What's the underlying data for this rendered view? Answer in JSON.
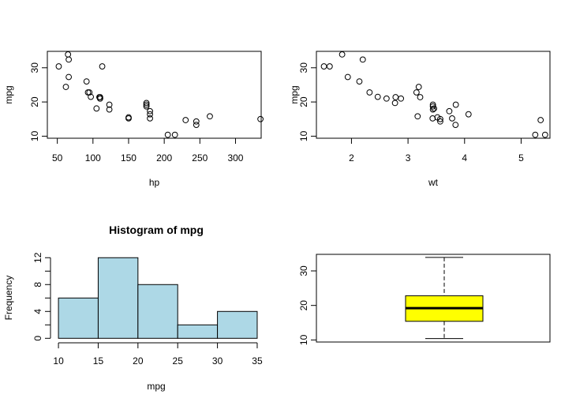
{
  "chart_data": [
    {
      "type": "scatter",
      "xlabel": "hp",
      "ylabel": "mpg",
      "xlim": [
        36,
        336
      ],
      "ylim": [
        9.4,
        34.8
      ],
      "xticks": [
        50,
        100,
        150,
        200,
        250,
        300
      ],
      "yticks": [
        10,
        20,
        30
      ],
      "points": [
        [
          110,
          21.0
        ],
        [
          110,
          21.0
        ],
        [
          93,
          22.8
        ],
        [
          110,
          21.4
        ],
        [
          175,
          18.7
        ],
        [
          105,
          18.1
        ],
        [
          245,
          14.3
        ],
        [
          62,
          24.4
        ],
        [
          95,
          22.8
        ],
        [
          123,
          19.2
        ],
        [
          123,
          17.8
        ],
        [
          180,
          16.4
        ],
        [
          180,
          17.3
        ],
        [
          180,
          15.2
        ],
        [
          205,
          10.4
        ],
        [
          215,
          10.4
        ],
        [
          230,
          14.7
        ],
        [
          66,
          32.4
        ],
        [
          52,
          30.4
        ],
        [
          65,
          33.9
        ],
        [
          97,
          21.5
        ],
        [
          150,
          15.5
        ],
        [
          150,
          15.2
        ],
        [
          245,
          13.3
        ],
        [
          175,
          19.2
        ],
        [
          66,
          27.3
        ],
        [
          91,
          26.0
        ],
        [
          113,
          30.4
        ],
        [
          264,
          15.8
        ],
        [
          175,
          19.7
        ],
        [
          335,
          15.0
        ],
        [
          109,
          21.4
        ]
      ]
    },
    {
      "type": "scatter",
      "xlabel": "wt",
      "ylabel": "mpg",
      "xlim": [
        1.38,
        5.51
      ],
      "ylim": [
        9.4,
        34.8
      ],
      "xticks": [
        2,
        3,
        4,
        5
      ],
      "yticks": [
        10,
        20,
        30
      ],
      "points": [
        [
          2.62,
          21.0
        ],
        [
          2.875,
          21.0
        ],
        [
          2.32,
          22.8
        ],
        [
          3.215,
          21.4
        ],
        [
          3.44,
          18.7
        ],
        [
          3.46,
          18.1
        ],
        [
          3.57,
          14.3
        ],
        [
          3.19,
          24.4
        ],
        [
          3.15,
          22.8
        ],
        [
          3.44,
          19.2
        ],
        [
          3.44,
          17.8
        ],
        [
          4.07,
          16.4
        ],
        [
          3.73,
          17.3
        ],
        [
          3.78,
          15.2
        ],
        [
          5.25,
          10.4
        ],
        [
          5.424,
          10.4
        ],
        [
          5.345,
          14.7
        ],
        [
          2.2,
          32.4
        ],
        [
          1.615,
          30.4
        ],
        [
          1.835,
          33.9
        ],
        [
          2.465,
          21.5
        ],
        [
          3.52,
          15.5
        ],
        [
          3.435,
          15.2
        ],
        [
          3.84,
          13.3
        ],
        [
          3.845,
          19.2
        ],
        [
          1.935,
          27.3
        ],
        [
          2.14,
          26.0
        ],
        [
          1.513,
          30.4
        ],
        [
          3.17,
          15.8
        ],
        [
          2.77,
          19.7
        ],
        [
          3.57,
          15.0
        ],
        [
          2.78,
          21.4
        ]
      ]
    },
    {
      "type": "bar",
      "subtype": "histogram",
      "title": "Histogram of mpg",
      "xlabel": "mpg",
      "ylabel": "Frequency",
      "bins": [
        [
          10,
          15
        ],
        [
          15,
          20
        ],
        [
          20,
          25
        ],
        [
          25,
          30
        ],
        [
          30,
          35
        ]
      ],
      "values": [
        6,
        12,
        8,
        2,
        4
      ],
      "xlim": [
        9,
        35.5
      ],
      "ylim": [
        -0.2,
        12.5
      ],
      "xticks": [
        10,
        15,
        20,
        25,
        30,
        35
      ],
      "yticks": [
        0,
        4,
        8,
        12
      ],
      "minor_yticks": [
        2,
        6,
        10
      ],
      "fill": "#add8e6"
    },
    {
      "type": "box",
      "ylim": [
        9.4,
        34.8
      ],
      "yticks": [
        10,
        20,
        30
      ],
      "whisker_low": 10.4,
      "q1": 15.4,
      "median": 19.2,
      "q3": 22.8,
      "whisker_high": 33.9,
      "fill": "#ffff00"
    }
  ]
}
